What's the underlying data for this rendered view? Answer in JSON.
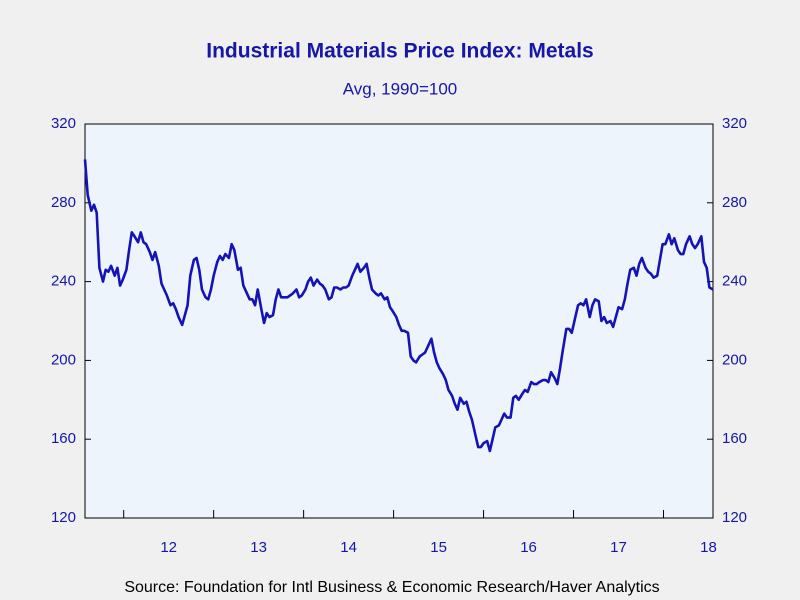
{
  "chart_data": {
    "type": "line",
    "title": "Industrial Materials Price Index: Metals",
    "subtitle": "Avg, 1990=100",
    "source": "Source:  Foundation for Intl Business & Economic Research/Haver Analytics",
    "xlim": [
      2011.57,
      2018.55
    ],
    "xticks": [
      2012,
      2013,
      2014,
      2015,
      2016,
      2017,
      2018
    ],
    "xtick_labels": [
      {
        "value": 2012.5,
        "label": "12"
      },
      {
        "value": 2013.5,
        "label": "13"
      },
      {
        "value": 2014.5,
        "label": "14"
      },
      {
        "value": 2015.5,
        "label": "15"
      },
      {
        "value": 2016.5,
        "label": "16"
      },
      {
        "value": 2017.5,
        "label": "17"
      },
      {
        "value": 2018.5,
        "label": "18"
      }
    ],
    "ylim": [
      120,
      320
    ],
    "yticks": [
      120,
      160,
      200,
      240,
      280,
      320
    ],
    "y2lim": [
      120,
      320
    ],
    "y2ticks": [
      120,
      160,
      200,
      240,
      280,
      320
    ],
    "x": [
      2011.57,
      2011.6,
      2011.64,
      2011.67,
      2011.7,
      2011.73,
      2011.77,
      2011.8,
      2011.83,
      2011.86,
      2011.9,
      2011.93,
      2011.96,
      2011.99,
      2012.03,
      2012.06,
      2012.09,
      2012.12,
      2012.16,
      2012.19,
      2012.22,
      2012.25,
      2012.29,
      2012.32,
      2012.35,
      2012.39,
      2012.42,
      2012.45,
      2012.48,
      2012.52,
      2012.55,
      2012.58,
      2012.61,
      2012.65,
      2012.68,
      2012.71,
      2012.74,
      2012.78,
      2012.81,
      2012.84,
      2012.87,
      2012.91,
      2012.94,
      2012.97,
      2013.0,
      2013.04,
      2013.07,
      2013.1,
      2013.13,
      2013.17,
      2013.2,
      2013.23,
      2013.27,
      2013.3,
      2013.33,
      2013.36,
      2013.4,
      2013.43,
      2013.46,
      2013.49,
      2013.53,
      2013.56,
      2013.59,
      2013.62,
      2013.66,
      2013.69,
      2013.72,
      2013.75,
      2013.79,
      2013.82,
      2013.85,
      2013.88,
      2013.92,
      2013.95,
      2013.98,
      2014.02,
      2014.05,
      2014.08,
      2014.11,
      2014.15,
      2014.18,
      2014.21,
      2014.24,
      2014.28,
      2014.31,
      2014.34,
      2014.37,
      2014.41,
      2014.44,
      2014.47,
      2014.5,
      2014.54,
      2014.57,
      2014.6,
      2014.63,
      2014.67,
      2014.7,
      2014.73,
      2014.76,
      2014.8,
      2014.83,
      2014.86,
      2014.9,
      2014.93,
      2014.96,
      2014.99,
      2015.03,
      2015.06,
      2015.09,
      2015.12,
      2015.16,
      2015.19,
      2015.22,
      2015.25,
      2015.29,
      2015.32,
      2015.35,
      2015.38,
      2015.42,
      2015.45,
      2015.48,
      2015.51,
      2015.55,
      2015.58,
      2015.61,
      2015.65,
      2015.68,
      2015.71,
      2015.74,
      2015.78,
      2015.81,
      2015.84,
      2015.87,
      2015.91,
      2015.94,
      2015.97,
      2016.0,
      2016.04,
      2016.07,
      2016.1,
      2016.13,
      2016.17,
      2016.2,
      2016.23,
      2016.26,
      2016.3,
      2016.33,
      2016.36,
      2016.39,
      2016.43,
      2016.46,
      2016.49,
      2016.53,
      2016.56,
      2016.59,
      2016.62,
      2016.66,
      2016.69,
      2016.72,
      2016.75,
      2016.79,
      2016.82,
      2016.85,
      2016.88,
      2016.92,
      2016.95,
      2016.98,
      2017.01,
      2017.05,
      2017.08,
      2017.11,
      2017.14,
      2017.18,
      2017.21,
      2017.24,
      2017.28,
      2017.31,
      2017.34,
      2017.37,
      2017.41,
      2017.44,
      2017.47,
      2017.5,
      2017.54,
      2017.57,
      2017.6,
      2017.63,
      2017.67,
      2017.7,
      2017.73,
      2017.76,
      2017.8,
      2017.83,
      2017.86,
      2017.89,
      2017.93,
      2017.96,
      2017.99,
      2018.02,
      2018.06,
      2018.09,
      2018.12,
      2018.16,
      2018.19,
      2018.22,
      2018.25,
      2018.29,
      2018.32,
      2018.35,
      2018.38,
      2018.42,
      2018.45,
      2018.48,
      2018.51,
      2018.55
    ],
    "series": [
      {
        "name": "Metals",
        "color": "#1414b4",
        "values": [
          302,
          284,
          276,
          279,
          275,
          247,
          240,
          246,
          245,
          248,
          243,
          247,
          238,
          241,
          246,
          256,
          265,
          263,
          260,
          265,
          260,
          259,
          255,
          251,
          255,
          248,
          239,
          236,
          233,
          228,
          229,
          226,
          222,
          218,
          223,
          228,
          243,
          251,
          252,
          246,
          236,
          232,
          231,
          236,
          243,
          250,
          253,
          251,
          254,
          252,
          259,
          256,
          246,
          247,
          238,
          235,
          231,
          231,
          228,
          236,
          226,
          219,
          224,
          222,
          223,
          231,
          236,
          232,
          232,
          232,
          233,
          234,
          236,
          232,
          233,
          236,
          240,
          242,
          238,
          241,
          239,
          238,
          236,
          231,
          232,
          237,
          237,
          236,
          237,
          237,
          238,
          243,
          246,
          249,
          245,
          247,
          249,
          242,
          236,
          234,
          233,
          234,
          231,
          232,
          227,
          225,
          222,
          218,
          215,
          215,
          214,
          202,
          200,
          199,
          202,
          203,
          204,
          207,
          211,
          204,
          199,
          196,
          193,
          190,
          185,
          182,
          178,
          175,
          181,
          178,
          179,
          174,
          170,
          162,
          156,
          156,
          158,
          159,
          154,
          160,
          166,
          167,
          170,
          173,
          171,
          171,
          181,
          182,
          180,
          183,
          185,
          184,
          189,
          188,
          188,
          189,
          190,
          190,
          189,
          194,
          191,
          188,
          196,
          205,
          216,
          216,
          214,
          220,
          228,
          229,
          228,
          231,
          222,
          228,
          231,
          230,
          220,
          222,
          219,
          220,
          217,
          222,
          227,
          226,
          231,
          239,
          246,
          247,
          243,
          249,
          252,
          247,
          245,
          244,
          242,
          243,
          251,
          259,
          259,
          264,
          259,
          262,
          256,
          254,
          254,
          259,
          263,
          259,
          257,
          259,
          263,
          250,
          247,
          237,
          236
        ]
      }
    ]
  }
}
